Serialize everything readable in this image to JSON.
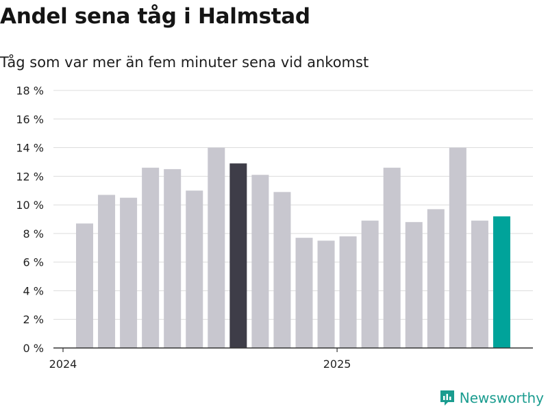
{
  "title": "Andel sena tåg i Halmstad",
  "subtitle": "Tåg som var mer än fem minuter sena vid ankomst",
  "brand": "Newsworthy",
  "colors": {
    "bar_default": "#c8c7cf",
    "bar_highlight_dark": "#3e3d48",
    "bar_highlight_teal": "#00a39a",
    "grid": "#dcdcdc",
    "axis": "#333333",
    "brand": "#1a9c8f"
  },
  "chart_data": {
    "type": "bar",
    "ylim": [
      0,
      18
    ],
    "yticks": [
      0,
      2,
      4,
      6,
      8,
      10,
      12,
      14,
      16,
      18
    ],
    "ytick_labels": [
      "0 %",
      "2 %",
      "4 %",
      "6 %",
      "8 %",
      "10 %",
      "12 %",
      "14 %",
      "16 %",
      "18 %"
    ],
    "xtick_labels": [
      {
        "label": "2024",
        "before_bar": 0
      },
      {
        "label": "2025",
        "before_bar": 12
      }
    ],
    "values": [
      8.7,
      10.7,
      10.5,
      12.6,
      12.5,
      11.0,
      14.0,
      12.9,
      12.1,
      10.9,
      7.7,
      7.5,
      7.8,
      8.9,
      12.6,
      8.8,
      9.7,
      14.0,
      8.9,
      9.2
    ],
    "highlight_dark_index": 7,
    "highlight_teal_index": 19,
    "grid": true
  }
}
